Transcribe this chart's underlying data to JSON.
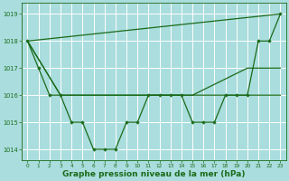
{
  "background_color": "#aadddd",
  "grid_color": "#ffffff",
  "line_color": "#1a6b1a",
  "xlabel": "Graphe pression niveau de la mer (hPa)",
  "xlabel_fontsize": 6.5,
  "ylim": [
    1013.6,
    1019.4
  ],
  "xlim": [
    -0.5,
    23.5
  ],
  "yticks": [
    1014,
    1015,
    1016,
    1017,
    1018,
    1019
  ],
  "xticks": [
    0,
    1,
    2,
    3,
    4,
    5,
    6,
    7,
    8,
    9,
    10,
    11,
    12,
    13,
    14,
    15,
    16,
    17,
    18,
    19,
    20,
    21,
    22,
    23
  ],
  "series_wavy": {
    "x": [
      0,
      1,
      2,
      3,
      4,
      5,
      6,
      7,
      8,
      9,
      10,
      11,
      12,
      13,
      14,
      15,
      16,
      17,
      18,
      19,
      20,
      21,
      22,
      23
    ],
    "y": [
      1018,
      1017,
      1016,
      1016,
      1015,
      1015,
      1014,
      1014,
      1014,
      1015,
      1015,
      1016,
      1016,
      1016,
      1016,
      1015,
      1015,
      1015,
      1016,
      1016,
      1016,
      1018,
      1018,
      1019
    ]
  },
  "series_straight": {
    "x": [
      0,
      23
    ],
    "y": [
      1018,
      1019
    ]
  },
  "series_converge": {
    "x": [
      0,
      3,
      10,
      15,
      20,
      23
    ],
    "y": [
      1018,
      1016,
      1016,
      1016,
      1017,
      1017
    ]
  },
  "series_flat": {
    "x": [
      0,
      3,
      23
    ],
    "y": [
      1018,
      1016,
      1016
    ]
  }
}
